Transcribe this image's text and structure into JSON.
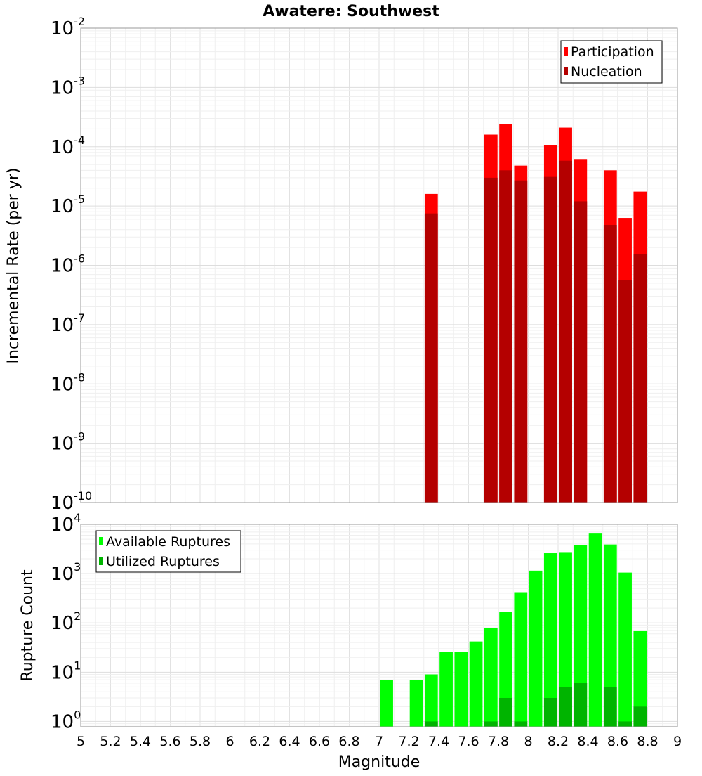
{
  "chart_data": {
    "type": "bar",
    "title": "Awatere: Southwest",
    "xlabel": "Magnitude",
    "xlim": [
      5,
      9
    ],
    "xticks": [
      "5",
      "5.2",
      "5.4",
      "5.6",
      "5.8",
      "6",
      "6.2",
      "6.4",
      "6.6",
      "6.8",
      "7",
      "7.2",
      "7.4",
      "7.6",
      "7.8",
      "8",
      "8.2",
      "8.4",
      "8.6",
      "8.8",
      "9"
    ],
    "bin_width": 0.1,
    "panels": [
      {
        "id": "rate",
        "ylabel": "Incremental Rate (per yr)",
        "yscale": "log",
        "ylim": [
          1e-10,
          0.01
        ],
        "yticks": [
          {
            "base": "10",
            "exp": "-10"
          },
          {
            "base": "10",
            "exp": "-9"
          },
          {
            "base": "10",
            "exp": "-8"
          },
          {
            "base": "10",
            "exp": "-7"
          },
          {
            "base": "10",
            "exp": "-6"
          },
          {
            "base": "10",
            "exp": "-5"
          },
          {
            "base": "10",
            "exp": "-4"
          },
          {
            "base": "10",
            "exp": "-3"
          },
          {
            "base": "10",
            "exp": "-2"
          }
        ],
        "legend_position": "top-right",
        "series": [
          {
            "name": "Participation",
            "color": "#ff0000",
            "x": [
              7.35,
              7.75,
              7.85,
              7.95,
              8.15,
              8.25,
              8.35,
              8.55,
              8.65,
              8.75
            ],
            "values": [
              1.6e-05,
              0.00016,
              0.00024,
              4.8e-05,
              0.000105,
              0.00021,
              6.2e-05,
              4e-05,
              6.3e-06,
              1.75e-05
            ]
          },
          {
            "name": "Nucleation",
            "color": "#b40000",
            "x": [
              7.35,
              7.75,
              7.85,
              7.95,
              8.15,
              8.25,
              8.35,
              8.55,
              8.65,
              8.75
            ],
            "values": [
              7.5e-06,
              3e-05,
              4e-05,
              2.7e-05,
              3.1e-05,
              5.8e-05,
              1.2e-05,
              4.8e-06,
              5.7e-07,
              1.55e-06
            ]
          }
        ]
      },
      {
        "id": "count",
        "ylabel": "Rupture Count",
        "yscale": "log",
        "ylim": [
          0.78,
          10000
        ],
        "yticks": [
          {
            "base": "10",
            "exp": "0"
          },
          {
            "base": "10",
            "exp": "1"
          },
          {
            "base": "10",
            "exp": "2"
          },
          {
            "base": "10",
            "exp": "3"
          },
          {
            "base": "10",
            "exp": "4"
          }
        ],
        "legend_position": "top-left",
        "series": [
          {
            "name": "Available Ruptures",
            "color": "#00ff00",
            "x": [
              7.05,
              7.25,
              7.35,
              7.45,
              7.55,
              7.65,
              7.75,
              7.85,
              7.95,
              8.05,
              8.15,
              8.25,
              8.35,
              8.45,
              8.55,
              8.65,
              8.75
            ],
            "values": [
              7,
              7,
              9,
              26,
              26,
              42,
              80,
              165,
              420,
              1150,
              2600,
              2650,
              3800,
              6500,
              3900,
              1050,
              68
            ]
          },
          {
            "name": "Utilized Ruptures",
            "color": "#00b400",
            "x": [
              7.35,
              7.75,
              7.85,
              7.95,
              8.15,
              8.25,
              8.35,
              8.55,
              8.65,
              8.75
            ],
            "values": [
              1,
              1,
              3,
              1,
              3,
              5,
              6,
              5,
              1,
              2
            ]
          }
        ]
      }
    ]
  }
}
